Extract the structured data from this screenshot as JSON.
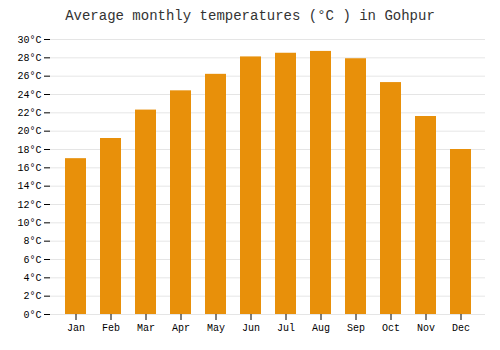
{
  "chart_data": {
    "type": "bar",
    "title": "Average monthly temperatures (°C ) in Gohpur",
    "categories": [
      "Jan",
      "Feb",
      "Mar",
      "Apr",
      "May",
      "Jun",
      "Jul",
      "Aug",
      "Sep",
      "Oct",
      "Nov",
      "Dec"
    ],
    "values": [
      17.0,
      19.2,
      22.3,
      24.4,
      26.2,
      28.1,
      28.5,
      28.7,
      27.9,
      25.3,
      21.6,
      18.0
    ],
    "color": "#E8900A",
    "ylim": [
      0,
      30
    ],
    "yticks": [
      {
        "value": 0,
        "label": "0°C"
      },
      {
        "value": 2,
        "label": "2°C"
      },
      {
        "value": 4,
        "label": "4°C"
      },
      {
        "value": 6,
        "label": "6°C"
      },
      {
        "value": 8,
        "label": "8°C"
      },
      {
        "value": 10,
        "label": "10°C"
      },
      {
        "value": 12,
        "label": "12°C"
      },
      {
        "value": 14,
        "label": "14°C"
      },
      {
        "value": 16,
        "label": "16°C"
      },
      {
        "value": 18,
        "label": "18°C"
      },
      {
        "value": 20,
        "label": "20°C"
      },
      {
        "value": 22,
        "label": "22°C"
      },
      {
        "value": 24,
        "label": "24°C"
      },
      {
        "value": 26,
        "label": "26°C"
      },
      {
        "value": 28,
        "label": "28°C"
      },
      {
        "value": 30,
        "label": "30°C"
      }
    ],
    "grid": true
  }
}
